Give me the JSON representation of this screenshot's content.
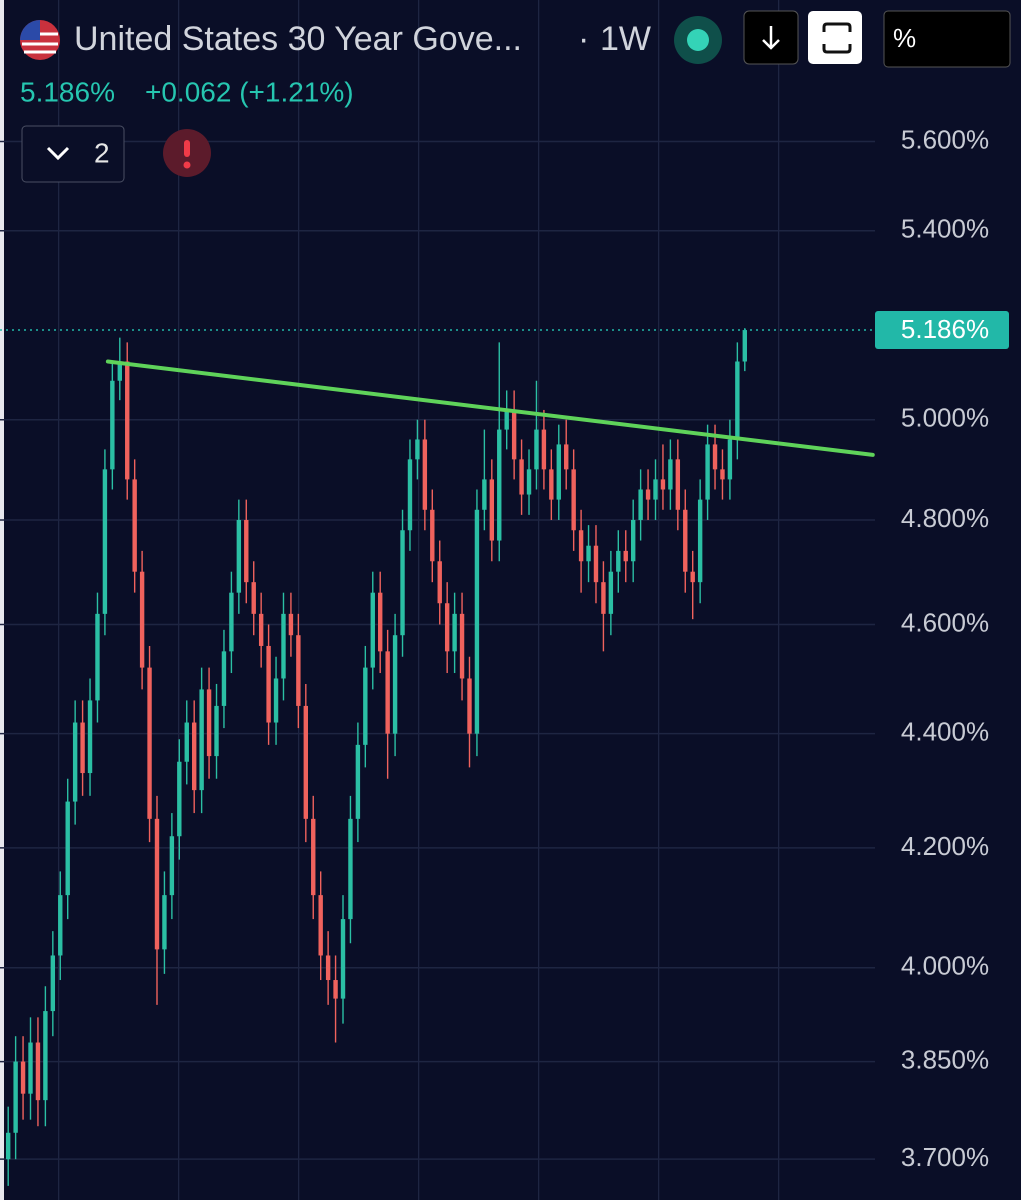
{
  "header": {
    "title": "United States 30 Year Gove...",
    "separator": "·",
    "interval": "1W",
    "price": "5.186%",
    "change": "+0.062 (+1.21%)",
    "indicators_count": "2",
    "unit_button": "%"
  },
  "chart_data": {
    "type": "candlestick",
    "log_scale": true,
    "grid": true,
    "up_color": "#2bbfa4",
    "down_color": "#f0625d",
    "xlim": [
      -1.1,
      116.5
    ],
    "ylim": [
      3.639,
      5.932
    ],
    "yticks": [
      {
        "value": 3.7,
        "label": "3.700%"
      },
      {
        "value": 3.85,
        "label": "3.850%"
      },
      {
        "value": 4.0,
        "label": "4.000%"
      },
      {
        "value": 4.2,
        "label": "4.200%"
      },
      {
        "value": 4.4,
        "label": "4.400%"
      },
      {
        "value": 4.6,
        "label": "4.600%"
      },
      {
        "value": 4.8,
        "label": "4.800%"
      },
      {
        "value": 5.0,
        "label": "5.000%"
      },
      {
        "value": 5.4,
        "label": "5.400%"
      },
      {
        "value": 5.6,
        "label": "5.600%"
      }
    ],
    "candles": {
      "open": [
        3.7,
        3.74,
        3.85,
        3.8,
        3.88,
        3.79,
        3.93,
        4.02,
        4.12,
        4.28,
        4.42,
        4.33,
        4.46,
        4.62,
        4.9,
        5.08,
        5.12,
        4.88,
        4.7,
        4.52,
        4.25,
        4.03,
        4.12,
        4.22,
        4.35,
        4.42,
        4.3,
        4.48,
        4.36,
        4.45,
        4.55,
        4.66,
        4.8,
        4.68,
        4.62,
        4.56,
        4.42,
        4.5,
        4.62,
        4.58,
        4.45,
        4.25,
        4.12,
        4.02,
        3.98,
        3.95,
        4.08,
        4.25,
        4.38,
        4.52,
        4.66,
        4.55,
        4.4,
        4.58,
        4.78,
        4.92,
        4.96,
        4.82,
        4.72,
        4.64,
        4.55,
        4.62,
        4.5,
        4.4,
        4.82,
        4.88,
        4.76,
        4.98,
        5.02,
        4.92,
        4.85,
        4.9,
        4.98,
        4.9,
        4.84,
        4.95,
        4.9,
        4.78,
        4.72,
        4.75,
        4.68,
        4.62,
        4.7,
        4.74,
        4.72,
        4.8,
        4.86,
        4.84,
        4.88,
        4.86,
        4.92,
        4.82,
        4.7,
        4.68,
        4.84,
        4.95,
        4.9,
        4.88,
        4.96,
        5.12
      ],
      "high": [
        3.78,
        3.89,
        3.89,
        3.92,
        3.92,
        3.97,
        4.06,
        4.16,
        4.32,
        4.46,
        4.46,
        4.5,
        4.66,
        4.94,
        5.12,
        5.17,
        5.16,
        4.92,
        4.74,
        4.56,
        4.29,
        4.16,
        4.26,
        4.39,
        4.46,
        4.46,
        4.52,
        4.52,
        4.49,
        4.59,
        4.7,
        4.84,
        4.84,
        4.72,
        4.66,
        4.6,
        4.54,
        4.66,
        4.66,
        4.62,
        4.49,
        4.29,
        4.16,
        4.06,
        4.02,
        4.12,
        4.29,
        4.42,
        4.56,
        4.7,
        4.7,
        4.59,
        4.62,
        4.82,
        4.96,
        5.0,
        5.0,
        4.86,
        4.76,
        4.68,
        4.66,
        4.66,
        4.54,
        4.86,
        4.98,
        4.92,
        5.16,
        5.06,
        5.06,
        4.96,
        4.94,
        5.08,
        5.02,
        4.94,
        4.99,
        5.0,
        4.94,
        4.82,
        4.79,
        4.79,
        4.72,
        4.74,
        4.78,
        4.78,
        4.84,
        4.9,
        4.9,
        4.92,
        4.95,
        4.96,
        4.96,
        4.86,
        4.74,
        4.88,
        4.99,
        4.99,
        4.94,
        5.0,
        5.16,
        5.19
      ],
      "low": [
        3.66,
        3.7,
        3.76,
        3.76,
        3.75,
        3.75,
        3.89,
        3.98,
        4.08,
        4.24,
        4.29,
        4.29,
        4.42,
        4.58,
        4.86,
        5.04,
        4.84,
        4.66,
        4.48,
        4.21,
        3.94,
        3.99,
        4.08,
        4.18,
        4.31,
        4.26,
        4.26,
        4.32,
        4.32,
        4.41,
        4.51,
        4.62,
        4.64,
        4.58,
        4.52,
        4.38,
        4.38,
        4.46,
        4.54,
        4.41,
        4.21,
        4.08,
        3.98,
        3.94,
        3.88,
        3.91,
        4.04,
        4.21,
        4.34,
        4.48,
        4.51,
        4.32,
        4.36,
        4.54,
        4.74,
        4.88,
        4.78,
        4.68,
        4.6,
        4.51,
        4.51,
        4.46,
        4.34,
        4.36,
        4.78,
        4.72,
        4.72,
        4.94,
        4.88,
        4.81,
        4.81,
        4.86,
        4.86,
        4.8,
        4.8,
        4.86,
        4.74,
        4.66,
        4.68,
        4.64,
        4.55,
        4.58,
        4.66,
        4.68,
        4.68,
        4.76,
        4.8,
        4.8,
        4.82,
        4.82,
        4.78,
        4.66,
        4.61,
        4.64,
        4.8,
        4.86,
        4.84,
        4.84,
        4.92,
        5.1
      ],
      "close": [
        3.74,
        3.85,
        3.8,
        3.88,
        3.79,
        3.93,
        4.02,
        4.12,
        4.28,
        4.42,
        4.33,
        4.46,
        4.62,
        4.9,
        5.08,
        5.12,
        4.88,
        4.7,
        4.52,
        4.25,
        4.03,
        4.12,
        4.22,
        4.35,
        4.42,
        4.3,
        4.48,
        4.36,
        4.45,
        4.55,
        4.66,
        4.8,
        4.68,
        4.62,
        4.56,
        4.42,
        4.5,
        4.62,
        4.58,
        4.45,
        4.25,
        4.12,
        4.02,
        3.98,
        3.95,
        4.08,
        4.25,
        4.38,
        4.52,
        4.66,
        4.55,
        4.4,
        4.58,
        4.78,
        4.92,
        4.96,
        4.82,
        4.72,
        4.64,
        4.55,
        4.62,
        4.5,
        4.4,
        4.82,
        4.88,
        4.76,
        4.98,
        5.02,
        4.92,
        4.85,
        4.9,
        4.98,
        4.9,
        4.84,
        4.95,
        4.9,
        4.78,
        4.72,
        4.75,
        4.68,
        4.62,
        4.7,
        4.74,
        4.72,
        4.8,
        4.86,
        4.84,
        4.88,
        4.86,
        4.92,
        4.82,
        4.7,
        4.68,
        4.84,
        4.95,
        4.9,
        4.88,
        4.96,
        5.12,
        5.186
      ]
    },
    "trendline": {
      "color": "#5fd35a",
      "x": [
        13.4,
        116.2
      ],
      "values": [
        5.12,
        4.929
      ]
    },
    "last_price": {
      "value": 5.186,
      "label": "5.186%",
      "color": "#22b8a8"
    }
  }
}
